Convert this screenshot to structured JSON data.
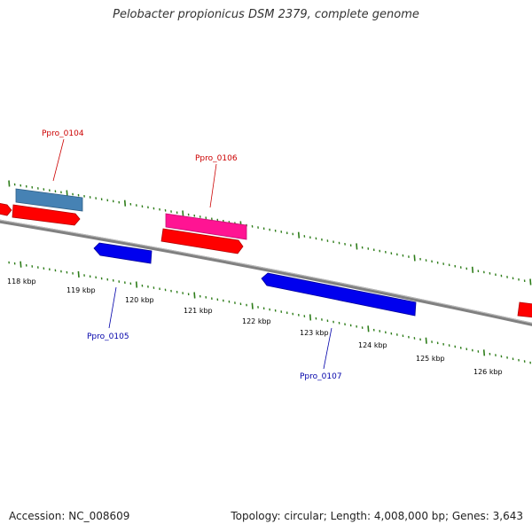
{
  "title": "Pelobacter propionicus DSM 2379, complete genome",
  "footer": {
    "accession": "Accession: NC_008609",
    "summary": "Topology: circular; Length: 4,008,000 bp; Genes: 3,643"
  },
  "ticks": {
    "labels": [
      "118 kbp",
      "119 kbp",
      "120 kbp",
      "121 kbp",
      "122 kbp",
      "123 kbp",
      "124 kbp",
      "125 kbp",
      "126 kbp"
    ],
    "color": "#2e7d1a"
  },
  "genes": [
    {
      "label": "Ppro_0104",
      "color": "#4682b4",
      "label_color": "#cc0000",
      "strand": "forward"
    },
    {
      "label": "Ppro_0105",
      "color": "#0000ee",
      "label_color": "#0000aa",
      "strand": "reverse"
    },
    {
      "label": "Ppro_0106",
      "color": "#ff1493",
      "label_color": "#cc0000",
      "strand": "forward"
    },
    {
      "label": "Ppro_0107",
      "color": "#0000ee",
      "label_color": "#0000aa",
      "strand": "reverse"
    }
  ],
  "cds_color": "#ff0000",
  "backbone_color": "#808080"
}
